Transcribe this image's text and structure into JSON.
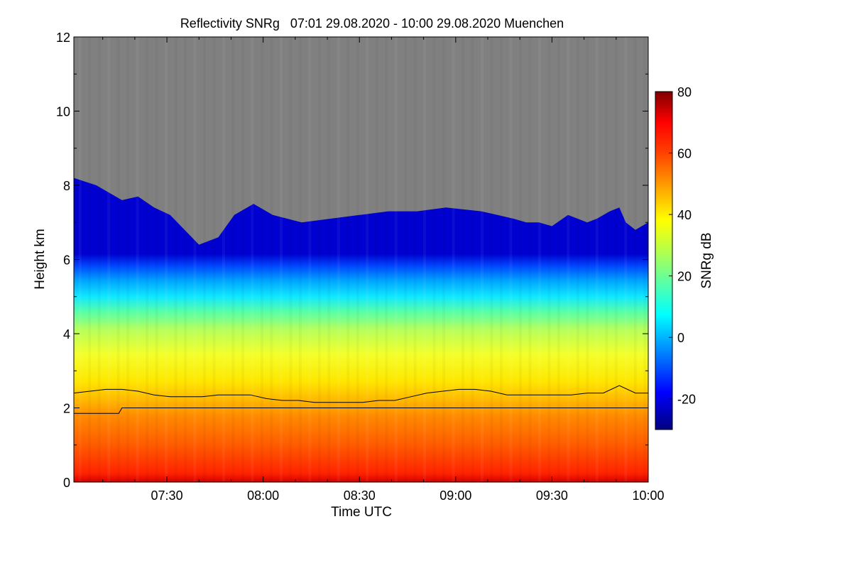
{
  "chart_data": {
    "type": "heatmap",
    "title": "Reflectivity SNRg   07:01 29.08.2020 - 10:00 29.08.2020 Muenchen",
    "xlabel": "Time UTC",
    "ylabel": "Height km",
    "x_ticks": [
      "07:30",
      "08:00",
      "08:30",
      "09:00",
      "09:30",
      "10:00"
    ],
    "x_tick_values_min": [
      450,
      480,
      510,
      540,
      570,
      600
    ],
    "xlim_min": [
      421,
      600
    ],
    "y_ticks": [
      "0",
      "2",
      "4",
      "6",
      "8",
      "10",
      "12"
    ],
    "y_tick_values": [
      0,
      2,
      4,
      6,
      8,
      10,
      12
    ],
    "ylim": [
      0,
      12
    ],
    "colorbar": {
      "label": "SNRg dB",
      "ticks": [
        "80",
        "60",
        "40",
        "20",
        "0",
        "-20"
      ],
      "tick_values": [
        80,
        60,
        40,
        20,
        0,
        -20
      ],
      "range": [
        -30,
        80
      ],
      "colormap": "jet"
    },
    "no_signal_color": "#808080",
    "signal_top_km": {
      "x_min": [
        421,
        428,
        436,
        441,
        446,
        451,
        460,
        466,
        471,
        477,
        483,
        492,
        501,
        510,
        519,
        528,
        537,
        548,
        553,
        558,
        562,
        566,
        570,
        575,
        581,
        584,
        588,
        591,
        593,
        596,
        600
      ],
      "height": [
        8.2,
        8.0,
        7.6,
        7.7,
        7.4,
        7.2,
        6.4,
        6.6,
        7.2,
        7.5,
        7.2,
        7.0,
        7.1,
        7.2,
        7.3,
        7.3,
        7.4,
        7.3,
        7.2,
        7.1,
        7.0,
        7.0,
        6.9,
        7.2,
        7.0,
        7.1,
        7.3,
        7.4,
        7.0,
        6.8,
        7.0
      ]
    },
    "series": [
      {
        "x_min": [
          421,
          426,
          431,
          436,
          441,
          446,
          451,
          456,
          461,
          466,
          471,
          476,
          481,
          486,
          491,
          496,
          501,
          506,
          511,
          516,
          521,
          526,
          531,
          536,
          541,
          546,
          551,
          556,
          561,
          566,
          571,
          576,
          581,
          586,
          591,
          596,
          600
        ],
        "height_km": [
          2.4,
          2.45,
          2.5,
          2.5,
          2.45,
          2.35,
          2.3,
          2.3,
          2.3,
          2.35,
          2.35,
          2.35,
          2.25,
          2.2,
          2.2,
          2.15,
          2.15,
          2.15,
          2.15,
          2.2,
          2.2,
          2.3,
          2.4,
          2.45,
          2.5,
          2.5,
          2.45,
          2.35,
          2.35,
          2.35,
          2.35,
          2.35,
          2.4,
          2.4,
          2.6,
          2.4,
          2.4
        ]
      },
      {
        "x_min": [
          421,
          435,
          436,
          600
        ],
        "height_km": [
          1.85,
          1.85,
          2.0,
          2.0
        ]
      }
    ]
  }
}
